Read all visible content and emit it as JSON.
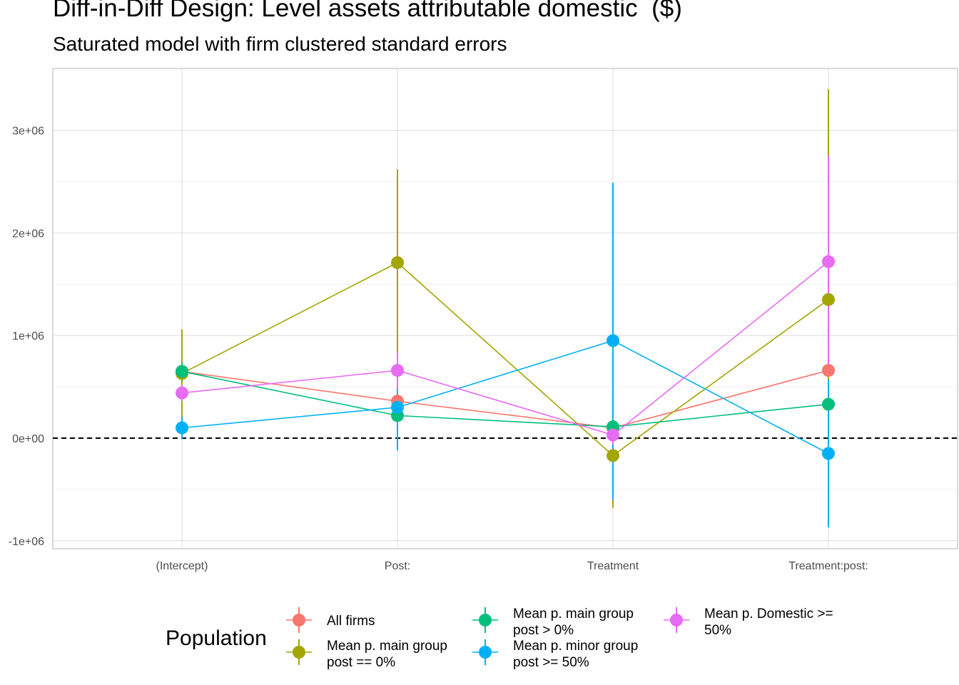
{
  "title": "Diff-in-Diff Design: Level assets attributable domestic  ($)",
  "subtitle": "Saturated model with firm clustered standard errors",
  "chart_data": {
    "type": "line",
    "title": "Diff-in-Diff Design: Level assets attributable domestic  ($)",
    "subtitle": "Saturated model with firm clustered standard errors",
    "xlabel": "",
    "ylabel": "",
    "categories": [
      "(Intercept)",
      "Post:",
      "Treatment",
      "Treatment:post:"
    ],
    "y_ticks": [
      -1000000,
      0,
      1000000,
      2000000,
      3000000
    ],
    "y_tick_labels": [
      "-1e+06",
      "0e+00",
      "1e+06",
      "2e+06",
      "3e+06"
    ],
    "ylim": [
      -1080000,
      3600000
    ],
    "reference_line": 0,
    "grid": true,
    "legend": {
      "title": "Population",
      "position": "bottom"
    },
    "series": [
      {
        "name": "All firms",
        "color": "#F8766D",
        "values": [
          650000,
          360000,
          100000,
          660000
        ],
        "lower": [
          560000,
          280000,
          -50000,
          570000
        ],
        "upper": [
          740000,
          440000,
          250000,
          750000
        ]
      },
      {
        "name": "Mean p. main group\npost == 0%",
        "color": "#A3A500",
        "values": [
          630000,
          1710000,
          -170000,
          1350000
        ],
        "lower": [
          200000,
          800000,
          -680000,
          0
        ],
        "upper": [
          1060000,
          2620000,
          340000,
          3400000
        ]
      },
      {
        "name": "Mean p. main group\npost > 0%",
        "color": "#00BF7D",
        "values": [
          650000,
          220000,
          110000,
          330000
        ],
        "lower": [
          560000,
          140000,
          10000,
          200000
        ],
        "upper": [
          740000,
          300000,
          210000,
          460000
        ]
      },
      {
        "name": "Mean p. minor group\npost >= 50%",
        "color": "#00B0F6",
        "values": [
          100000,
          300000,
          950000,
          -150000
        ],
        "lower": [
          -10000,
          -120000,
          -600000,
          -870000
        ],
        "upper": [
          210000,
          720000,
          2490000,
          570000
        ]
      },
      {
        "name": "Mean p. Domestic >=\n50%",
        "color": "#E76BF3",
        "values": [
          440000,
          660000,
          30000,
          1720000
        ],
        "lower": [
          360000,
          480000,
          -60000,
          700000
        ],
        "upper": [
          520000,
          840000,
          120000,
          2750000
        ]
      }
    ]
  }
}
